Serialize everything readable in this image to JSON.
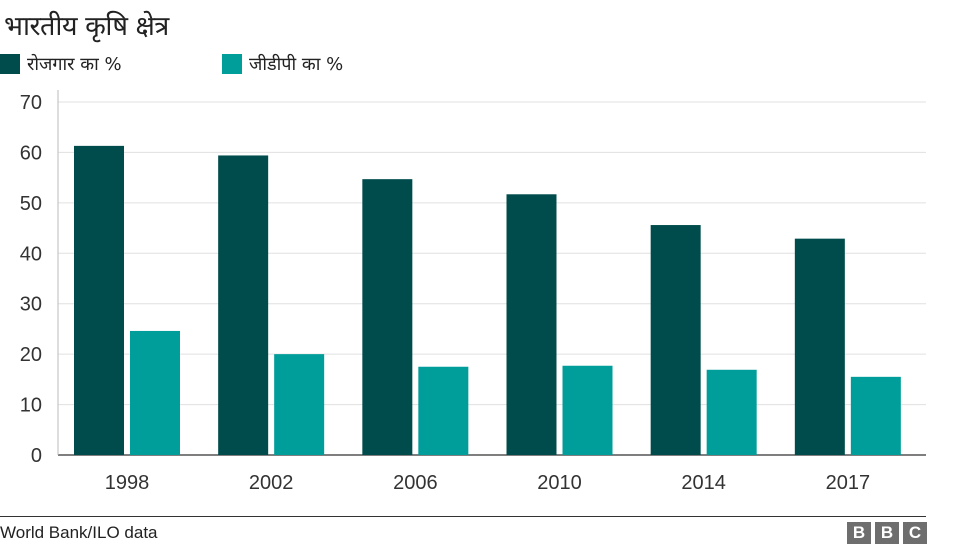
{
  "header": {
    "title": "भारतीय कृषि क्षेत्र"
  },
  "legend": [
    {
      "label": "रोजगार का %",
      "color": "#004c4c"
    },
    {
      "label": "जीडीपी का %",
      "color": "#009e9a"
    }
  ],
  "footer": {
    "source": "World Bank/ILO data",
    "logo_letters": [
      "B",
      "B",
      "C"
    ]
  },
  "chart_data": {
    "type": "bar",
    "title": "भारतीय कृषि क्षेत्र",
    "categories": [
      "1998",
      "2002",
      "2006",
      "2010",
      "2014",
      "2017"
    ],
    "series": [
      {
        "name": "रोजगार का %",
        "color": "#004c4c",
        "values": [
          61.3,
          59.4,
          54.7,
          51.7,
          45.6,
          42.9
        ]
      },
      {
        "name": "जीडीपी का %",
        "color": "#009e9a",
        "values": [
          24.6,
          20.0,
          17.5,
          17.7,
          16.9,
          15.5
        ]
      }
    ],
    "ylim": [
      0,
      70
    ],
    "yticks": [
      0,
      10,
      20,
      30,
      40,
      50,
      60,
      70
    ],
    "grid": true,
    "legend_position": "top-left"
  }
}
